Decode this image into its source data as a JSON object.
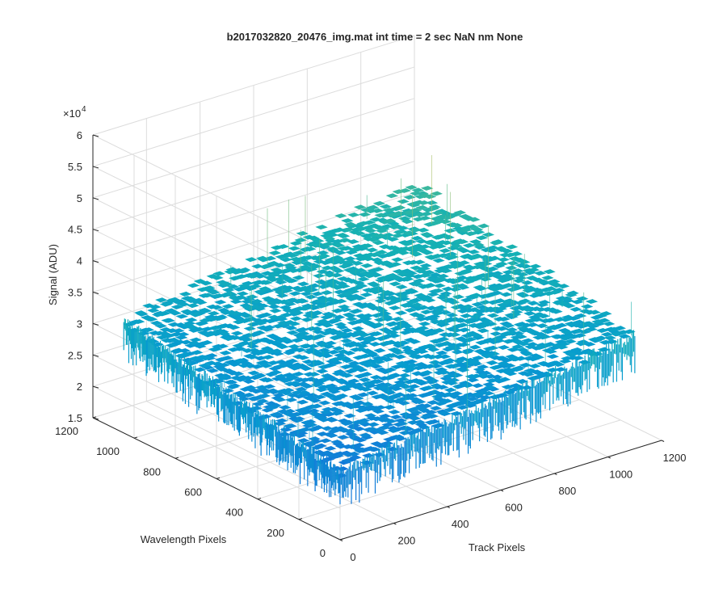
{
  "chart_data": {
    "type": "surface",
    "title": "b2017032820_20476_img.mat int time = 2 sec  NaN nm None",
    "xlabel": "Track Pixels",
    "ylabel": "Wavelength Pixels",
    "zlabel": "Signal (ADU)",
    "z_exponent_label": "×10",
    "z_exponent_power": "4",
    "x_ticks": [
      "0",
      "200",
      "400",
      "600",
      "800",
      "1000",
      "1200"
    ],
    "y_ticks": [
      "0",
      "200",
      "400",
      "600",
      "800",
      "1000",
      "1200"
    ],
    "z_ticks": [
      "1.5",
      "2",
      "2.5",
      "3",
      "3.5",
      "4",
      "4.5",
      "5",
      "5.5",
      "6"
    ],
    "xlim": [
      0,
      1200
    ],
    "ylim": [
      0,
      1200
    ],
    "zlim": [
      15000,
      60000
    ],
    "grid": true,
    "colormap": "parula",
    "surface_extent": {
      "x": [
        0,
        1100
      ],
      "y": [
        0,
        1050
      ]
    },
    "surface_level": {
      "near_corner": 26000,
      "far_corner": 40000,
      "typical_range": [
        25000,
        42000
      ]
    }
  }
}
